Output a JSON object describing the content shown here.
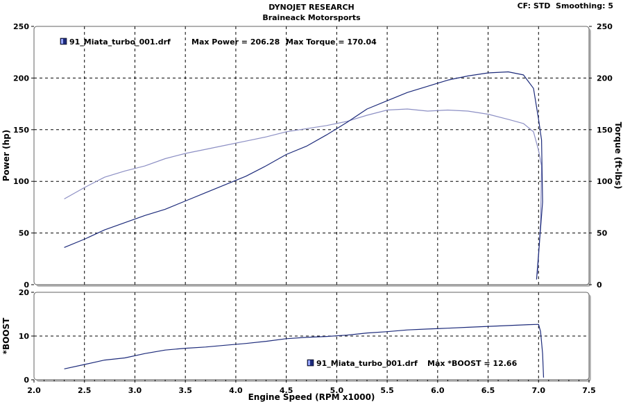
{
  "header": {
    "title": "DYNOJET RESEARCH",
    "subtitle": "Braineack Motorsports",
    "settings": "CF: STD  Smoothing: 5"
  },
  "colors": {
    "power": "#1c2a7a",
    "torque": "#8c8fc4",
    "boost": "#1c2a7a",
    "panel_bg": "#ffffff",
    "frame": "#606060"
  },
  "chart_data": [
    {
      "type": "line",
      "title": "",
      "xlabel": "Engine Speed (RPM x1000)",
      "ylabel": "Power (hp)",
      "y2label": "Torque (ft-lbs)",
      "xlim": [
        2.0,
        7.5
      ],
      "ylim": [
        0,
        250
      ],
      "y2lim": [
        0,
        250
      ],
      "x_ticks": [
        "2.0",
        "2.5",
        "3.0",
        "3.5",
        "4.0",
        "4.5",
        "5.0",
        "5.5",
        "6.0",
        "6.5",
        "7.0",
        "7.5"
      ],
      "y_ticks": [
        "0",
        "50",
        "100",
        "150",
        "200",
        "250"
      ],
      "grid": true,
      "legend": {
        "position": "top-left",
        "run": "91_Miata_turbo_001.drf",
        "max_power_label": "Max Power = 206.28",
        "max_torque_label": "Max Torque = 170.04"
      },
      "series": [
        {
          "key": "power",
          "x": [
            2.3,
            2.5,
            2.7,
            2.9,
            3.1,
            3.3,
            3.5,
            3.7,
            3.9,
            4.1,
            4.3,
            4.5,
            4.7,
            4.9,
            5.1,
            5.3,
            5.5,
            5.7,
            5.9,
            6.1,
            6.3,
            6.5,
            6.7,
            6.85,
            6.95,
            7.0,
            7.03,
            7.04,
            7.0,
            6.98
          ],
          "y": [
            36,
            44,
            53,
            60,
            67,
            73,
            81,
            89,
            97,
            105,
            115,
            126,
            134,
            145,
            157,
            170,
            178,
            186,
            192,
            198,
            202,
            205,
            206,
            203,
            190,
            160,
            140,
            80,
            30,
            5
          ]
        },
        {
          "key": "torque",
          "x": [
            2.3,
            2.5,
            2.7,
            2.9,
            3.1,
            3.3,
            3.5,
            3.7,
            3.9,
            4.1,
            4.3,
            4.5,
            4.7,
            4.9,
            5.1,
            5.3,
            5.5,
            5.7,
            5.9,
            6.1,
            6.3,
            6.5,
            6.7,
            6.85,
            6.95,
            7.0,
            7.03,
            7.02,
            6.99
          ],
          "y": [
            83,
            94,
            104,
            110,
            115,
            122,
            127,
            131,
            135,
            139,
            143,
            148,
            151,
            154,
            158,
            164,
            169,
            170,
            168,
            169,
            168,
            165,
            160,
            156,
            148,
            130,
            115,
            60,
            10
          ]
        }
      ]
    },
    {
      "type": "line",
      "title": "",
      "xlabel": "Engine Speed (RPM x1000)",
      "ylabel": "*BOOST",
      "xlim": [
        2.0,
        7.5
      ],
      "ylim": [
        0,
        20
      ],
      "y_ticks": [
        "0",
        "10",
        "20"
      ],
      "grid": true,
      "legend": {
        "position": "bottom-center",
        "run": "91_Miata_turbo_001.drf",
        "max_boost_label": "Max *BOOST = 12.66"
      },
      "series": [
        {
          "key": "boost",
          "x": [
            2.3,
            2.5,
            2.7,
            2.9,
            3.1,
            3.3,
            3.5,
            3.7,
            3.9,
            4.1,
            4.3,
            4.5,
            4.7,
            4.9,
            5.1,
            5.3,
            5.5,
            5.7,
            5.9,
            6.1,
            6.3,
            6.5,
            6.7,
            6.9,
            7.0,
            7.02,
            7.04,
            7.05
          ],
          "y": [
            2.5,
            3.5,
            4.5,
            5.0,
            6.0,
            6.8,
            7.2,
            7.5,
            7.9,
            8.3,
            8.8,
            9.4,
            9.7,
            9.9,
            10.2,
            10.7,
            11.0,
            11.4,
            11.6,
            11.8,
            12.0,
            12.2,
            12.4,
            12.6,
            12.66,
            11.0,
            6.0,
            0.5
          ]
        }
      ]
    }
  ]
}
